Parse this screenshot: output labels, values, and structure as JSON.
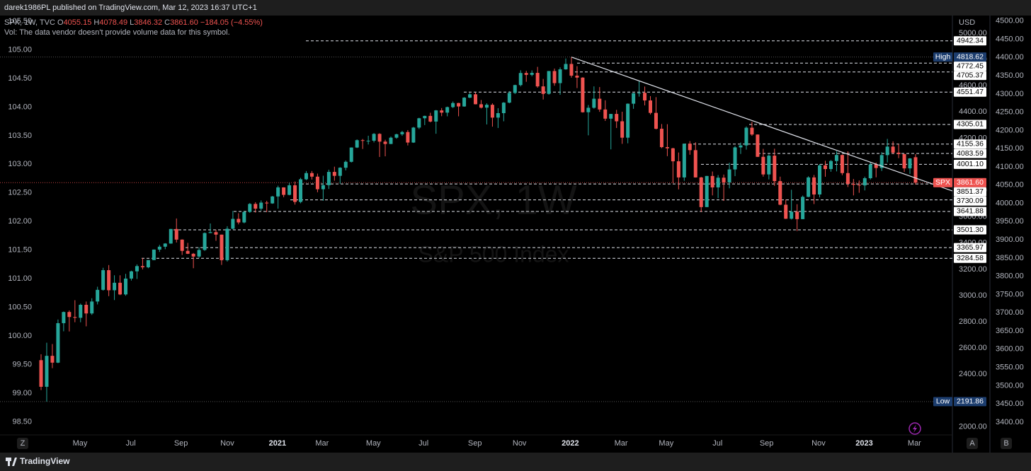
{
  "header": {
    "publisher": "darek1986PL published on TradingView.com, Mar 12, 2023 16:37 UTC+1"
  },
  "chart_data": {
    "type": "candlestick",
    "legend": {
      "symbol": "SPX, 1W, TVC",
      "items": [
        {
          "prefix": "O",
          "value": "4055.15"
        },
        {
          "prefix": "H",
          "value": "4078.49"
        },
        {
          "prefix": "L",
          "value": "3846.32"
        },
        {
          "prefix": "C",
          "value": "3861.60"
        }
      ],
      "change": "−184.05 (−4.55%)",
      "volume_note": "Vol: The data vendor doesn't provide volume data for this symbol."
    },
    "watermark": "SPX, 1W",
    "watermark_subtitle": "S&P 500 Index",
    "currency": "USD",
    "colors": {
      "up": "#26a69a",
      "down": "#ef5350"
    },
    "ohlc": [
      [
        2508,
        2553,
        2280,
        2305
      ],
      [
        2305,
        2641,
        2191.86,
        2541
      ],
      [
        2541,
        2631,
        2447,
        2489
      ],
      [
        2489,
        2818,
        2485,
        2790
      ],
      [
        2790,
        2879,
        2728,
        2875
      ],
      [
        2875,
        2887,
        2727,
        2837
      ],
      [
        2837,
        2965,
        2797,
        2831
      ],
      [
        2831,
        2939,
        2797,
        2930
      ],
      [
        2930,
        2955,
        2766,
        2864
      ],
      [
        2864,
        2980,
        2853,
        2955
      ],
      [
        2955,
        3068,
        2933,
        3044
      ],
      [
        3044,
        3212,
        3038,
        3194
      ],
      [
        3194,
        3233,
        2996,
        3041
      ],
      [
        3041,
        3155,
        2966,
        3098
      ],
      [
        3098,
        3155,
        3004,
        3009
      ],
      [
        3009,
        3166,
        2999,
        3130
      ],
      [
        3130,
        3190,
        3115,
        3185
      ],
      [
        3185,
        3238,
        3127,
        3225
      ],
      [
        3225,
        3287,
        3200,
        3216
      ],
      [
        3216,
        3272,
        3209,
        3271
      ],
      [
        3271,
        3352,
        3270,
        3351
      ],
      [
        3351,
        3387,
        3333,
        3373
      ],
      [
        3373,
        3400,
        3354,
        3397
      ],
      [
        3397,
        3509,
        3395,
        3508
      ],
      [
        3508,
        3588,
        3405,
        3427
      ],
      [
        3427,
        3429,
        3310,
        3341
      ],
      [
        3341,
        3402,
        3317,
        3319
      ],
      [
        3319,
        3325,
        3209,
        3298
      ],
      [
        3298,
        3369,
        3288,
        3348
      ],
      [
        3348,
        3482,
        3341,
        3477
      ],
      [
        3477,
        3550,
        3476,
        3484
      ],
      [
        3484,
        3502,
        3418,
        3465
      ],
      [
        3465,
        3465,
        3234,
        3270
      ],
      [
        3270,
        3529,
        3260,
        3510
      ],
      [
        3510,
        3646,
        3505,
        3585
      ],
      [
        3585,
        3628,
        3543,
        3558
      ],
      [
        3558,
        3646,
        3551,
        3638
      ],
      [
        3638,
        3706,
        3631,
        3699
      ],
      [
        3699,
        3712,
        3633,
        3663
      ],
      [
        3663,
        3726,
        3648,
        3709
      ],
      [
        3709,
        3723,
        3636,
        3703
      ],
      [
        3703,
        3760,
        3700,
        3756
      ],
      [
        3756,
        3838,
        3663,
        3825
      ],
      [
        3825,
        3826,
        3750,
        3768
      ],
      [
        3768,
        3860,
        3765,
        3841
      ],
      [
        3841,
        3870,
        3694,
        3714
      ],
      [
        3714,
        3898,
        3704,
        3887
      ],
      [
        3887,
        3950,
        3880,
        3934
      ],
      [
        3934,
        3950,
        3885,
        3907
      ],
      [
        3907,
        3930,
        3788,
        3811
      ],
      [
        3811,
        3914,
        3723,
        3842
      ],
      [
        3842,
        3960,
        3813,
        3943
      ],
      [
        3943,
        3983,
        3876,
        3913
      ],
      [
        3913,
        3979,
        3853,
        3975
      ],
      [
        3975,
        4030,
        3955,
        4020
      ],
      [
        4020,
        4130,
        4015,
        4129
      ],
      [
        4129,
        4191,
        4125,
        4185
      ],
      [
        4185,
        4194,
        4118,
        4180
      ],
      [
        4180,
        4219,
        4152,
        4181
      ],
      [
        4181,
        4239,
        4168,
        4233
      ],
      [
        4233,
        4238,
        4057,
        4174
      ],
      [
        4174,
        4188,
        4062,
        4156
      ],
      [
        4156,
        4213,
        4155,
        4204
      ],
      [
        4204,
        4234,
        4196,
        4230
      ],
      [
        4230,
        4256,
        4218,
        4247
      ],
      [
        4247,
        4262,
        4145,
        4167
      ],
      [
        4167,
        4286,
        4164,
        4281
      ],
      [
        4281,
        4356,
        4270,
        4352
      ],
      [
        4352,
        4372,
        4300,
        4370
      ],
      [
        4370,
        4394,
        4321,
        4327
      ],
      [
        4327,
        4415,
        4234,
        4412
      ],
      [
        4412,
        4430,
        4368,
        4395
      ],
      [
        4395,
        4441,
        4367,
        4437
      ],
      [
        4437,
        4480,
        4430,
        4468
      ],
      [
        4468,
        4470,
        4367,
        4442
      ],
      [
        4442,
        4513,
        4440,
        4509
      ],
      [
        4509,
        4545,
        4506,
        4535
      ],
      [
        4535,
        4550,
        4458,
        4459
      ],
      [
        4459,
        4491,
        4427,
        4433
      ],
      [
        4433,
        4466,
        4305,
        4455
      ],
      [
        4455,
        4466,
        4288,
        4357
      ],
      [
        4357,
        4429,
        4278,
        4391
      ],
      [
        4391,
        4475,
        4329,
        4471
      ],
      [
        4471,
        4559,
        4466,
        4545
      ],
      [
        4545,
        4608,
        4537,
        4605
      ],
      [
        4605,
        4718,
        4595,
        4697
      ],
      [
        4697,
        4714,
        4630,
        4683
      ],
      [
        4683,
        4717,
        4672,
        4698
      ],
      [
        4698,
        4744,
        4585,
        4595
      ],
      [
        4595,
        4652,
        4495,
        4538
      ],
      [
        4538,
        4713,
        4532,
        4712
      ],
      [
        4712,
        4731,
        4600,
        4620
      ],
      [
        4620,
        4740,
        4531,
        4725
      ],
      [
        4725,
        4808,
        4722,
        4766
      ],
      [
        4766,
        4818.62,
        4662,
        4677
      ],
      [
        4677,
        4749,
        4582,
        4662
      ],
      [
        4662,
        4665,
        4395,
        4398
      ],
      [
        4398,
        4453,
        4222,
        4432
      ],
      [
        4432,
        4595,
        4425,
        4501
      ],
      [
        4501,
        4590,
        4401,
        4419
      ],
      [
        4419,
        4489,
        4332,
        4349
      ],
      [
        4349,
        4385,
        4115,
        4385
      ],
      [
        4385,
        4416,
        4278,
        4329
      ],
      [
        4329,
        4402,
        4157,
        4204
      ],
      [
        4204,
        4465,
        4161,
        4463
      ],
      [
        4463,
        4546,
        4424,
        4543
      ],
      [
        4543,
        4637,
        4517,
        4546
      ],
      [
        4546,
        4594,
        4450,
        4488
      ],
      [
        4488,
        4521,
        4381,
        4393
      ],
      [
        4393,
        4513,
        4267,
        4272
      ],
      [
        4272,
        4308,
        4124,
        4132
      ],
      [
        4132,
        4307,
        4063,
        4123
      ],
      [
        4123,
        4127,
        3859,
        4024
      ],
      [
        4024,
        4091,
        3810,
        3901
      ],
      [
        3901,
        4158,
        3875,
        4158
      ],
      [
        4158,
        4178,
        4074,
        4109
      ],
      [
        4109,
        4169,
        3900,
        3901
      ],
      [
        3901,
        3905,
        3637,
        3675
      ],
      [
        3675,
        3913,
        3675,
        3912
      ],
      [
        3912,
        3946,
        3764,
        3825
      ],
      [
        3825,
        3919,
        3743,
        3899
      ],
      [
        3899,
        3923,
        3722,
        3863
      ],
      [
        3863,
        4013,
        3818,
        3962
      ],
      [
        3962,
        4140,
        3911,
        4130
      ],
      [
        4130,
        4167,
        4080,
        4145
      ],
      [
        4145,
        4290,
        4113,
        4280
      ],
      [
        4280,
        4325,
        4218,
        4228
      ],
      [
        4228,
        4229,
        4057,
        4058
      ],
      [
        4058,
        4119,
        3907,
        3924
      ],
      [
        3924,
        4076,
        3886,
        4067
      ],
      [
        4067,
        4120,
        3837,
        3873
      ],
      [
        3873,
        3907,
        3689,
        3693
      ],
      [
        3693,
        3733,
        3584,
        3586
      ],
      [
        3586,
        3807,
        3580,
        3640
      ],
      [
        3640,
        3697,
        3492,
        3583
      ],
      [
        3583,
        3763,
        3583,
        3753
      ],
      [
        3753,
        3910,
        3750,
        3901
      ],
      [
        3901,
        3920,
        3698,
        3771
      ],
      [
        3771,
        4002,
        3749,
        3993
      ],
      [
        3993,
        4028,
        3906,
        3965
      ],
      [
        3965,
        4034,
        3944,
        4026
      ],
      [
        4026,
        4101,
        3947,
        4072
      ],
      [
        4072,
        4076,
        3918,
        3934
      ],
      [
        3934,
        4100,
        3828,
        3852
      ],
      [
        3852,
        3889,
        3764,
        3845
      ],
      [
        3845,
        3878,
        3784,
        3840
      ],
      [
        3840,
        3907,
        3802,
        3895
      ],
      [
        3895,
        4015,
        3885,
        3999
      ],
      [
        3999,
        4015,
        3902,
        3973
      ],
      [
        3973,
        4094,
        3950,
        4071
      ],
      [
        4071,
        4195,
        4015,
        4136
      ],
      [
        4136,
        4176,
        4079,
        4090
      ],
      [
        4090,
        4156,
        4048,
        4079
      ],
      [
        4079,
        4080,
        3943,
        3970
      ],
      [
        3970,
        4049,
        3928,
        4046
      ],
      [
        4055.15,
        4078.49,
        3846.32,
        3861.6
      ]
    ],
    "xlim": [
      -7.28,
      160.9
    ],
    "xticks": [
      {
        "value": 6.9,
        "label": "May"
      },
      {
        "value": 15.9,
        "label": "Jul"
      },
      {
        "value": 24.8,
        "label": "Sep"
      },
      {
        "value": 33,
        "label": "Nov"
      },
      {
        "value": 41.9,
        "label": "2021"
      },
      {
        "value": 49.8,
        "label": "Mar"
      },
      {
        "value": 58.9,
        "label": "May"
      },
      {
        "value": 67.8,
        "label": "Jul"
      },
      {
        "value": 76.9,
        "label": "Sep"
      },
      {
        "value": 84.8,
        "label": "Nov"
      },
      {
        "value": 93.8,
        "label": "2022"
      },
      {
        "value": 102.8,
        "label": "Mar"
      },
      {
        "value": 110.8,
        "label": "May"
      },
      {
        "value": 119.9,
        "label": "Jul"
      },
      {
        "value": 128.6,
        "label": "Sep"
      },
      {
        "value": 137.8,
        "label": "Nov"
      },
      {
        "value": 145.9,
        "label": "2023"
      },
      {
        "value": 154.8,
        "label": "Mar"
      }
    ],
    "ylim": [
      1938,
      5135
    ],
    "yticks": [
      {
        "value": 5000,
        "label": "5000.00"
      },
      {
        "value": 4800,
        "label": "4800.00"
      },
      {
        "value": 4600,
        "label": "4600.00"
      },
      {
        "value": 4400,
        "label": "4400.00"
      },
      {
        "value": 4200,
        "label": "4200.00"
      },
      {
        "value": 3800,
        "label": "3800.00"
      },
      {
        "value": 3600,
        "label": "3600.00"
      },
      {
        "value": 3400,
        "label": "3400.00"
      },
      {
        "value": 3200,
        "label": "3200.00"
      },
      {
        "value": 3000,
        "label": "3000.00"
      },
      {
        "value": 2800,
        "label": "2800.00"
      },
      {
        "value": 2600,
        "label": "2600.00"
      },
      {
        "value": 2400,
        "label": "2400.00"
      },
      {
        "value": 2000,
        "label": "2000.00"
      }
    ],
    "y2lim": [
      3365,
      4515
    ],
    "y2ticks": [
      {
        "value": 4500,
        "label": "4500.00"
      },
      {
        "value": 4450,
        "label": "4450.00"
      },
      {
        "value": 4400,
        "label": "4400.00"
      },
      {
        "value": 4350,
        "label": "4350.00"
      },
      {
        "value": 4300,
        "label": "4300.00"
      },
      {
        "value": 4250,
        "label": "4250.00"
      },
      {
        "value": 4200,
        "label": "4200.00"
      },
      {
        "value": 4150,
        "label": "4150.00"
      },
      {
        "value": 4100,
        "label": "4100.00"
      },
      {
        "value": 4050,
        "label": "4050.00"
      },
      {
        "value": 4000,
        "label": "4000.00"
      },
      {
        "value": 3950,
        "label": "3950.00"
      },
      {
        "value": 3900,
        "label": "3900.00"
      },
      {
        "value": 3850,
        "label": "3850.00"
      },
      {
        "value": 3800,
        "label": "3800.00"
      },
      {
        "value": 3750,
        "label": "3750.00"
      },
      {
        "value": 3700,
        "label": "3700.00"
      },
      {
        "value": 3650,
        "label": "3650.00"
      },
      {
        "value": 3600,
        "label": "3600.00"
      },
      {
        "value": 3550,
        "label": "3550.00"
      },
      {
        "value": 3500,
        "label": "3500.00"
      },
      {
        "value": 3450,
        "label": "3450.00"
      },
      {
        "value": 3400,
        "label": "3400.00"
      }
    ],
    "left_ylim": [
      98.27,
      105.6
    ],
    "left_yticks": [
      {
        "value": 105.5,
        "label": "105.50"
      },
      {
        "value": 105,
        "label": "105.00"
      },
      {
        "value": 104.5,
        "label": "104.50"
      },
      {
        "value": 104,
        "label": "104.00"
      },
      {
        "value": 103.5,
        "label": "103.50"
      },
      {
        "value": 103,
        "label": "103.00"
      },
      {
        "value": 102.5,
        "label": "102.50"
      },
      {
        "value": 102,
        "label": "102.00"
      },
      {
        "value": 101.5,
        "label": "101.50"
      },
      {
        "value": 101,
        "label": "101.00"
      },
      {
        "value": 100.5,
        "label": "100.50"
      },
      {
        "value": 100,
        "label": "100.00"
      },
      {
        "value": 99.5,
        "label": "99.50"
      },
      {
        "value": 99,
        "label": "99.00"
      },
      {
        "value": 98.5,
        "label": "98.50"
      }
    ],
    "high": {
      "tag": "High",
      "value": 4818.62
    },
    "low": {
      "tag": "Low",
      "value": 2191.86
    },
    "last": {
      "tag": "SPX",
      "value": {
        "value": 3861.6,
        "label": "3861.60"
      }
    },
    "levels": [
      4772.45,
      4705.37,
      4551.47,
      4305.01,
      4155.36,
      4083.59,
      {
        "value": 4001.1,
        "label": "4001.10"
      },
      4942.34,
      3851.37,
      3730.09,
      3641.88,
      {
        "value": 3501.3,
        "label": "3501.30"
      },
      3365.97,
      3284.58
    ],
    "trendline": {
      "x": [
        94,
        161.5
      ],
      "y": [
        4818.62,
        3798
      ]
    }
  },
  "toolbar": {
    "left": "Z",
    "right": [
      "A",
      "B"
    ],
    "brand": "TradingView"
  }
}
